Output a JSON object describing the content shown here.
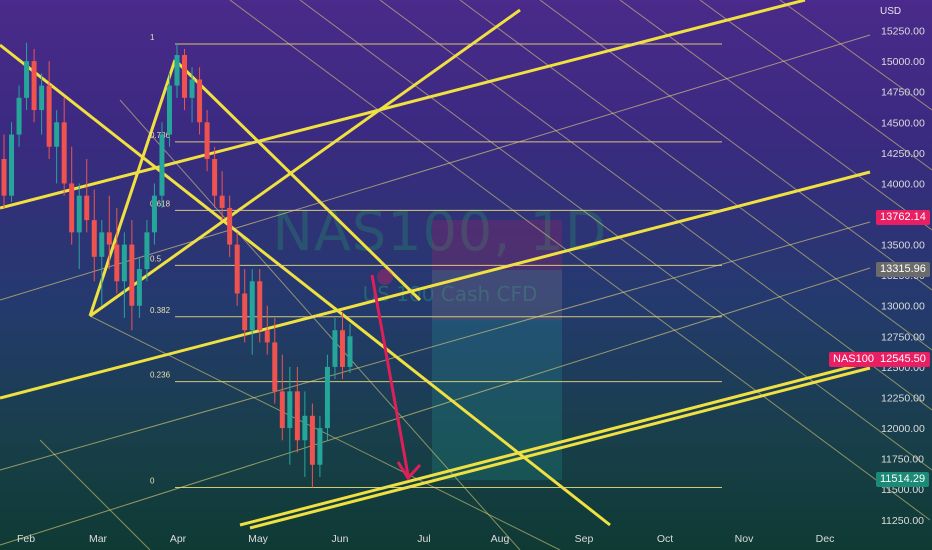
{
  "watermark": {
    "symbol": "NAS100, 1D",
    "name": "US 100 Cash CFD"
  },
  "currency": "USD",
  "ticker_tag": "NAS100",
  "price_tags": [
    {
      "value": "13762.14",
      "color": "#e91e63"
    },
    {
      "value": "13315.96",
      "color": "#6b6b6b"
    },
    {
      "value": "12545.50",
      "color": "#e91e63"
    },
    {
      "value": "11514.29",
      "color": "#1b8a77"
    }
  ],
  "colors": {
    "bull": "#26a69a",
    "bear": "#ef5350",
    "channel": "#f0e040",
    "fib": "#e8d878",
    "arrow": "#e01e5a"
  },
  "chart_data": {
    "type": "candlestick",
    "symbol": "NAS100",
    "timeframe": "1D",
    "ylim": [
      11150,
      15500
    ],
    "x_labels": [
      "Feb",
      "Mar",
      "Apr",
      "May",
      "Jun",
      "Jul",
      "Aug",
      "Sep",
      "Oct",
      "Nov",
      "Dec"
    ],
    "y_ticks": [
      11250,
      11500,
      11750,
      12000,
      12250,
      12500,
      12750,
      13000,
      13250,
      13500,
      13750,
      14000,
      14250,
      14500,
      14750,
      15000,
      15250
    ],
    "fib_levels": [
      {
        "label": "1",
        "price": 15140
      },
      {
        "label": "0.786",
        "price": 14340
      },
      {
        "label": "0.618",
        "price": 13780
      },
      {
        "label": "0.5",
        "price": 13330
      },
      {
        "label": "0.382",
        "price": 12910
      },
      {
        "label": "0.236",
        "price": 12380
      },
      {
        "label": "0",
        "price": 11514
      }
    ],
    "candles": [
      {
        "o": 14200,
        "h": 14400,
        "l": 13800,
        "c": 13900
      },
      {
        "o": 13900,
        "h": 14500,
        "l": 13850,
        "c": 14400
      },
      {
        "o": 14400,
        "h": 14800,
        "l": 14300,
        "c": 14700
      },
      {
        "o": 14700,
        "h": 15150,
        "l": 14600,
        "c": 15000
      },
      {
        "o": 15000,
        "h": 15100,
        "l": 14500,
        "c": 14600
      },
      {
        "o": 14600,
        "h": 14900,
        "l": 14400,
        "c": 14800
      },
      {
        "o": 14800,
        "h": 15000,
        "l": 14200,
        "c": 14300
      },
      {
        "o": 14300,
        "h": 14600,
        "l": 14000,
        "c": 14500
      },
      {
        "o": 14500,
        "h": 14700,
        "l": 13900,
        "c": 14000
      },
      {
        "o": 14000,
        "h": 14300,
        "l": 13500,
        "c": 13600
      },
      {
        "o": 13600,
        "h": 14000,
        "l": 13300,
        "c": 13900
      },
      {
        "o": 13900,
        "h": 14200,
        "l": 13600,
        "c": 13700
      },
      {
        "o": 13700,
        "h": 13950,
        "l": 13200,
        "c": 13400
      },
      {
        "o": 13400,
        "h": 13700,
        "l": 13000,
        "c": 13600
      },
      {
        "o": 13600,
        "h": 13900,
        "l": 13300,
        "c": 13500
      },
      {
        "o": 13500,
        "h": 13800,
        "l": 13100,
        "c": 13200
      },
      {
        "o": 13200,
        "h": 13600,
        "l": 12900,
        "c": 13500
      },
      {
        "o": 13500,
        "h": 13700,
        "l": 12800,
        "c": 13000
      },
      {
        "o": 13000,
        "h": 13400,
        "l": 12900,
        "c": 13300
      },
      {
        "o": 13300,
        "h": 13700,
        "l": 13200,
        "c": 13600
      },
      {
        "o": 13600,
        "h": 14000,
        "l": 13500,
        "c": 13900
      },
      {
        "o": 13900,
        "h": 14500,
        "l": 13800,
        "c": 14400
      },
      {
        "o": 14400,
        "h": 14900,
        "l": 14300,
        "c": 14800
      },
      {
        "o": 14800,
        "h": 15140,
        "l": 14700,
        "c": 15050
      },
      {
        "o": 15050,
        "h": 15100,
        "l": 14600,
        "c": 14700
      },
      {
        "o": 14700,
        "h": 14950,
        "l": 14500,
        "c": 14850
      },
      {
        "o": 14850,
        "h": 14950,
        "l": 14400,
        "c": 14500
      },
      {
        "o": 14500,
        "h": 14600,
        "l": 14100,
        "c": 14200
      },
      {
        "o": 14200,
        "h": 14300,
        "l": 13800,
        "c": 13900
      },
      {
        "o": 13900,
        "h": 14100,
        "l": 13700,
        "c": 13800
      },
      {
        "o": 13800,
        "h": 13900,
        "l": 13400,
        "c": 13500
      },
      {
        "o": 13500,
        "h": 13600,
        "l": 13000,
        "c": 13100
      },
      {
        "o": 13100,
        "h": 13300,
        "l": 12700,
        "c": 12800
      },
      {
        "o": 12800,
        "h": 13300,
        "l": 12600,
        "c": 13200
      },
      {
        "o": 13200,
        "h": 13300,
        "l": 12700,
        "c": 12800
      },
      {
        "o": 12800,
        "h": 13000,
        "l": 12600,
        "c": 12700
      },
      {
        "o": 12700,
        "h": 12900,
        "l": 12200,
        "c": 12300
      },
      {
        "o": 12300,
        "h": 12600,
        "l": 11900,
        "c": 12000
      },
      {
        "o": 12000,
        "h": 12500,
        "l": 11700,
        "c": 12300
      },
      {
        "o": 12300,
        "h": 12500,
        "l": 11800,
        "c": 11900
      },
      {
        "o": 11900,
        "h": 12300,
        "l": 11600,
        "c": 12100
      },
      {
        "o": 12100,
        "h": 12200,
        "l": 11514,
        "c": 11700
      },
      {
        "o": 11700,
        "h": 12100,
        "l": 11600,
        "c": 12000
      },
      {
        "o": 12000,
        "h": 12600,
        "l": 11900,
        "c": 12500
      },
      {
        "o": 12500,
        "h": 12900,
        "l": 12400,
        "c": 12800
      },
      {
        "o": 12800,
        "h": 12950,
        "l": 12400,
        "c": 12500
      },
      {
        "o": 12500,
        "h": 12850,
        "l": 12450,
        "c": 12750
      }
    ]
  }
}
